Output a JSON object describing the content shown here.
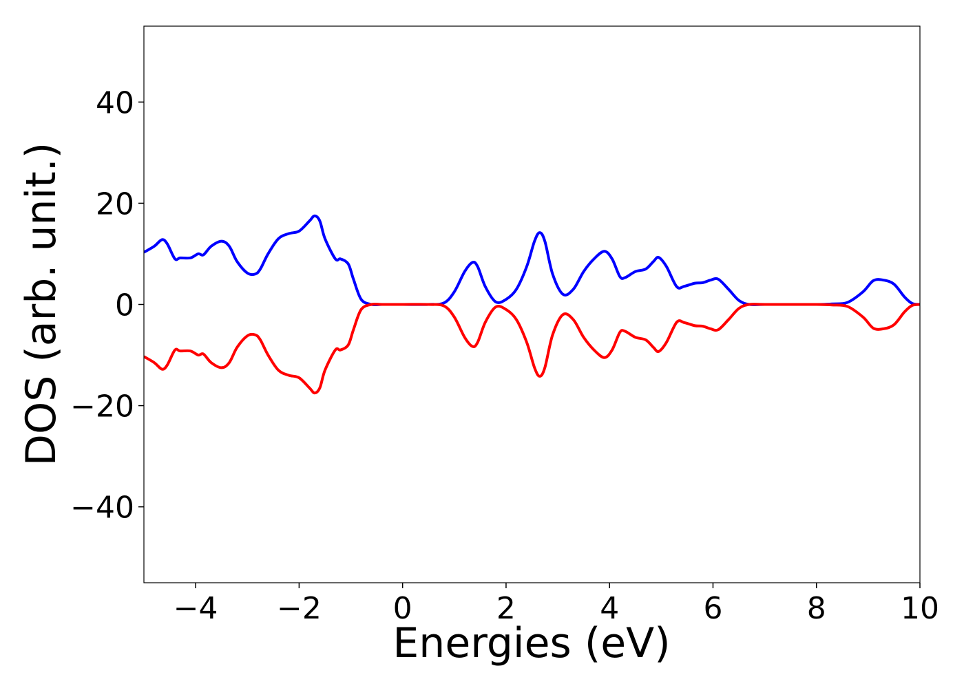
{
  "chart_data": {
    "type": "line",
    "title": "",
    "xlabel": "Energies (eV)",
    "ylabel": "DOS (arb. unit.)",
    "xlim": [
      -5,
      10
    ],
    "ylim": [
      -55,
      55
    ],
    "grid": false,
    "x_ticks": [
      -4,
      -2,
      0,
      2,
      4,
      6,
      8,
      10
    ],
    "x_tick_labels": [
      "−4",
      "−2",
      "0",
      "2",
      "4",
      "6",
      "8",
      "10"
    ],
    "y_ticks": [
      40,
      20,
      0,
      -20,
      -40
    ],
    "y_tick_labels": [
      "40",
      "20",
      "0",
      "−20",
      "−40"
    ],
    "series": [
      {
        "color": "#0000ff",
        "x": [
          -5.0,
          -4.8,
          -4.65,
          -4.55,
          -4.4,
          -4.3,
          -4.1,
          -3.95,
          -3.85,
          -3.7,
          -3.5,
          -3.35,
          -3.2,
          -3.0,
          -2.85,
          -2.75,
          -2.6,
          -2.4,
          -2.2,
          -2.0,
          -1.8,
          -1.7,
          -1.6,
          -1.5,
          -1.3,
          -1.2,
          -1.05,
          -0.95,
          -0.8,
          -0.6,
          -0.4,
          0.0,
          0.5,
          0.8,
          1.0,
          1.2,
          1.35,
          1.45,
          1.6,
          1.8,
          2.0,
          2.2,
          2.4,
          2.55,
          2.65,
          2.75,
          2.9,
          3.1,
          3.3,
          3.5,
          3.7,
          3.9,
          4.05,
          4.2,
          4.3,
          4.5,
          4.7,
          4.85,
          4.95,
          5.1,
          5.3,
          5.45,
          5.65,
          5.8,
          5.95,
          6.1,
          6.3,
          6.5,
          6.7,
          7.0,
          8.0,
          8.3,
          8.6,
          8.9,
          9.1,
          9.3,
          9.5,
          9.7,
          9.85,
          10.0
        ],
        "y": [
          10.3,
          11.5,
          12.8,
          12.0,
          9.0,
          9.2,
          9.2,
          10.0,
          9.8,
          11.5,
          12.5,
          11.5,
          8.5,
          6.2,
          6.0,
          7.0,
          10.0,
          13.0,
          14.0,
          14.5,
          16.5,
          17.5,
          16.5,
          13.0,
          9.0,
          9.0,
          8.0,
          5.0,
          1.0,
          0.0,
          0.0,
          0.0,
          0.0,
          0.3,
          2.5,
          6.5,
          8.3,
          7.5,
          3.5,
          0.5,
          1.0,
          3.0,
          7.5,
          12.5,
          14.2,
          12.5,
          6.0,
          2.0,
          3.0,
          6.5,
          9.0,
          10.5,
          9.0,
          5.5,
          5.3,
          6.5,
          7.0,
          8.5,
          9.3,
          7.5,
          3.5,
          3.6,
          4.2,
          4.3,
          4.8,
          5.0,
          3.0,
          0.8,
          0.0,
          0.0,
          0.0,
          0.1,
          0.4,
          2.5,
          4.7,
          4.8,
          4.0,
          1.5,
          0.2,
          0.0
        ]
      },
      {
        "color": "#ff0000",
        "x": [
          -5.0,
          -4.8,
          -4.65,
          -4.55,
          -4.4,
          -4.3,
          -4.1,
          -3.95,
          -3.85,
          -3.7,
          -3.5,
          -3.35,
          -3.2,
          -3.0,
          -2.85,
          -2.75,
          -2.6,
          -2.4,
          -2.2,
          -2.0,
          -1.8,
          -1.7,
          -1.6,
          -1.5,
          -1.3,
          -1.2,
          -1.05,
          -0.95,
          -0.8,
          -0.6,
          -0.4,
          0.0,
          0.5,
          0.8,
          1.0,
          1.2,
          1.35,
          1.45,
          1.6,
          1.8,
          2.0,
          2.2,
          2.4,
          2.55,
          2.65,
          2.75,
          2.9,
          3.1,
          3.3,
          3.5,
          3.7,
          3.9,
          4.05,
          4.2,
          4.3,
          4.5,
          4.7,
          4.85,
          4.95,
          5.1,
          5.3,
          5.45,
          5.65,
          5.8,
          5.95,
          6.1,
          6.3,
          6.5,
          6.7,
          7.0,
          8.0,
          8.3,
          8.6,
          8.9,
          9.1,
          9.3,
          9.5,
          9.7,
          9.85,
          10.0
        ],
        "y": [
          -10.3,
          -11.5,
          -12.8,
          -12.0,
          -9.0,
          -9.2,
          -9.2,
          -10.0,
          -9.8,
          -11.5,
          -12.5,
          -11.5,
          -8.5,
          -6.2,
          -6.0,
          -7.0,
          -10.0,
          -13.0,
          -14.0,
          -14.5,
          -16.5,
          -17.5,
          -16.5,
          -13.0,
          -9.0,
          -9.0,
          -8.0,
          -5.0,
          -1.0,
          0.0,
          0.0,
          0.0,
          0.0,
          -0.3,
          -2.5,
          -6.5,
          -8.3,
          -7.5,
          -3.5,
          -0.5,
          -1.0,
          -3.0,
          -7.5,
          -12.5,
          -14.2,
          -12.5,
          -6.0,
          -2.0,
          -3.0,
          -6.5,
          -9.0,
          -10.5,
          -9.0,
          -5.5,
          -5.3,
          -6.5,
          -7.0,
          -8.5,
          -9.3,
          -7.5,
          -3.5,
          -3.6,
          -4.2,
          -4.3,
          -4.8,
          -5.0,
          -3.0,
          -0.8,
          0.0,
          0.0,
          0.0,
          -0.1,
          -0.4,
          -2.5,
          -4.7,
          -4.8,
          -4.0,
          -1.5,
          -0.2,
          0.0
        ]
      }
    ]
  }
}
